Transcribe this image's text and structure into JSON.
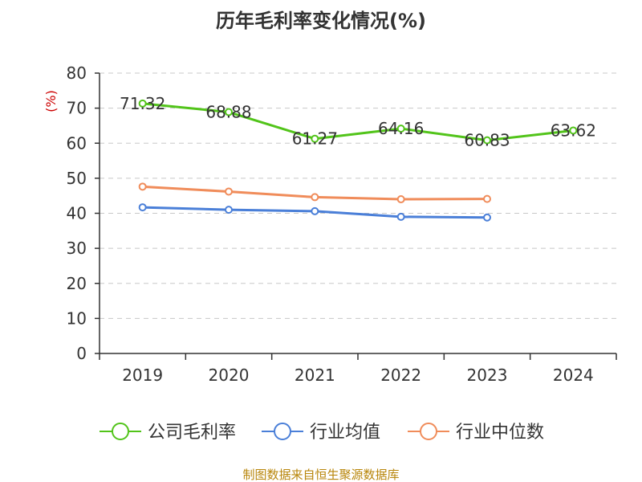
{
  "chart_data": {
    "type": "line",
    "title": "历年毛利率变化情况(%)",
    "ylabel": "(%)",
    "xlabel": "",
    "categories": [
      "2019",
      "2020",
      "2021",
      "2022",
      "2023",
      "2024"
    ],
    "ylim": [
      0,
      80
    ],
    "yticks": [
      0,
      10,
      20,
      30,
      40,
      50,
      60,
      70,
      80
    ],
    "grid": "horizontal dashed",
    "legend_position": "bottom",
    "series": [
      {
        "name": "公司毛利率",
        "color": "#52c41a",
        "values": [
          71.32,
          68.88,
          61.27,
          64.16,
          60.83,
          63.62
        ],
        "labels": [
          "71.32",
          "68.88",
          "61.27",
          "64.16",
          "60.83",
          "63.62"
        ]
      },
      {
        "name": "行业均值",
        "color": "#4a7fd8",
        "values": [
          41.7,
          41.0,
          40.6,
          39.0,
          38.8,
          null
        ]
      },
      {
        "name": "行业中位数",
        "color": "#f08c5a",
        "values": [
          47.6,
          46.2,
          44.6,
          44.0,
          44.1,
          null
        ]
      }
    ]
  },
  "footer": {
    "source": "制图数据来自恒生聚源数据库"
  }
}
